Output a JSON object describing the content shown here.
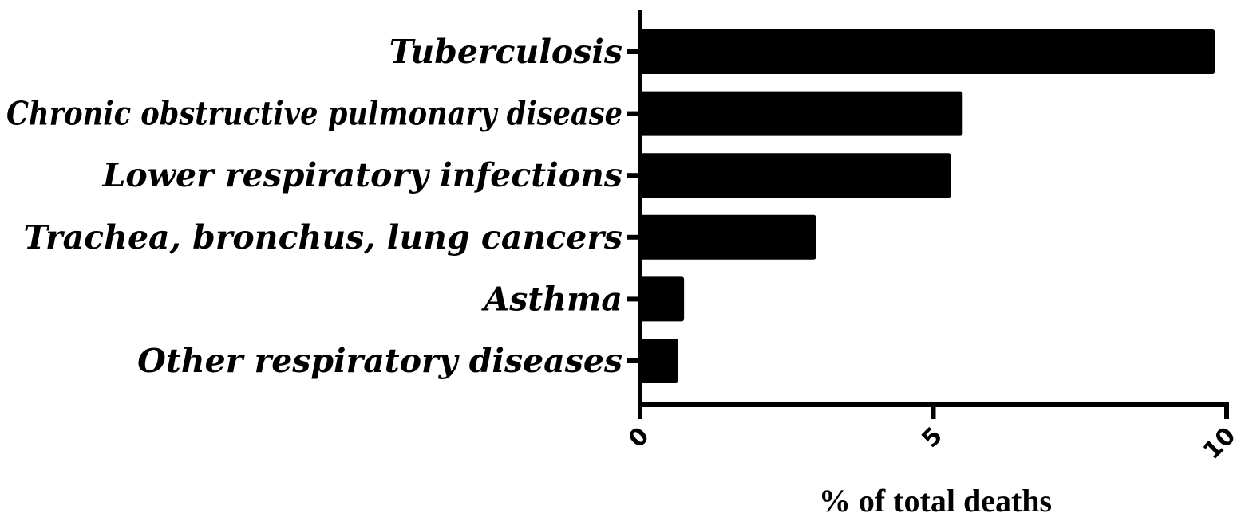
{
  "chart_data": {
    "type": "bar",
    "orientation": "horizontal",
    "categories": [
      "Tuberculosis",
      "Chronic obstructive pulmonary disease",
      "Lower respiratory infections",
      "Trachea, bronchus, lung cancers",
      "Asthma",
      "Other respiratory diseases"
    ],
    "values": [
      9.8,
      5.5,
      5.3,
      3.0,
      0.75,
      0.65
    ],
    "title": "",
    "xlabel": "% of total deaths",
    "ylabel": "",
    "xlim": [
      0,
      10
    ],
    "xticks": [
      "0",
      "5",
      "10"
    ],
    "grid": false,
    "legend": "none",
    "bar_color": "#000000"
  }
}
